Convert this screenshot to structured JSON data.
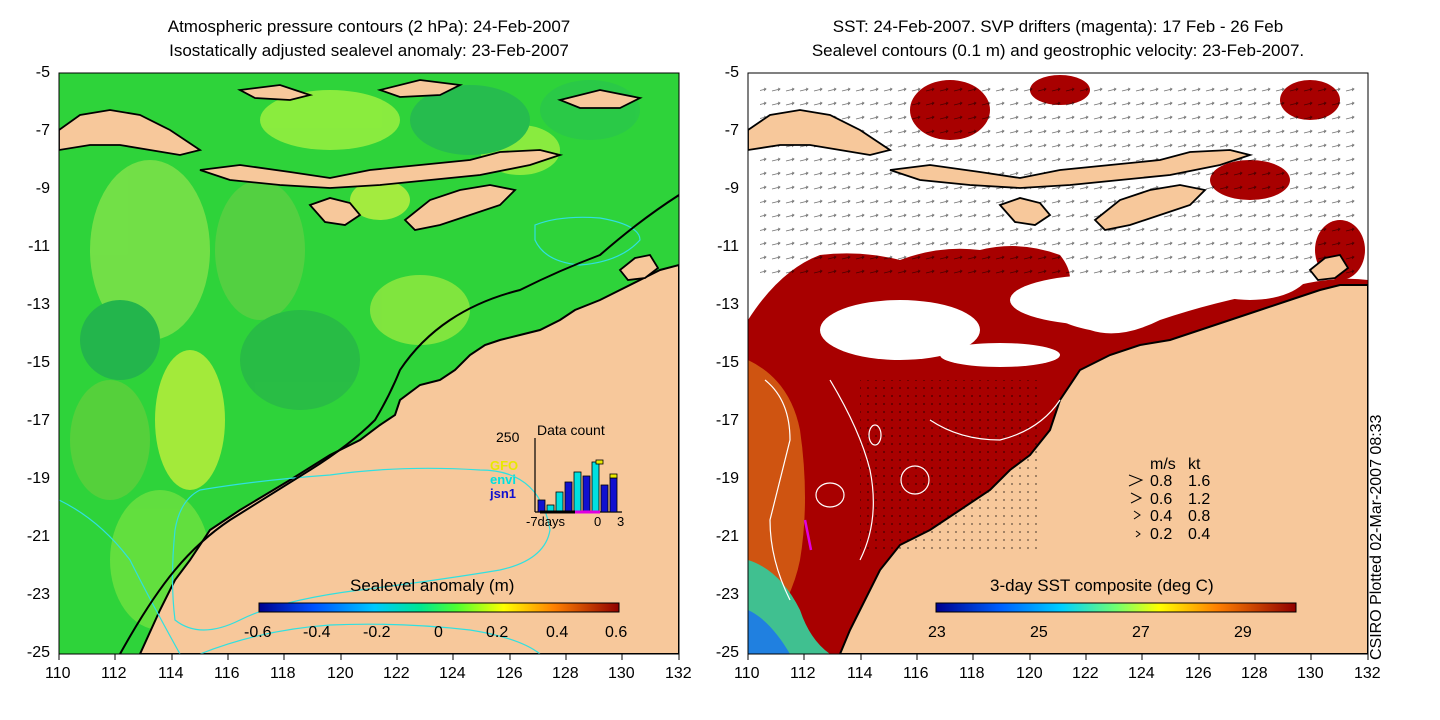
{
  "left_panel": {
    "title_line1": "Atmospheric pressure contours (2 hPa): 24-Feb-2007",
    "title_line2": "Isostatically adjusted sealevel anomaly: 23-Feb-2007",
    "colorbar_label": "Sealevel anomaly (m)",
    "colorbar_ticks": [
      "-0.6",
      "-0.4",
      "-0.2",
      "0",
      "0.2",
      "0.4",
      "0.6"
    ],
    "inset": {
      "title": "Data count",
      "ymax_label": "250",
      "legend": [
        {
          "name": "GFO",
          "color": "#e8e800"
        },
        {
          "name": "envi",
          "color": "#00e0e0"
        },
        {
          "name": "jsn1",
          "color": "#1010d0"
        }
      ],
      "x_left": "-7days",
      "x_mid": "0",
      "x_right": "3"
    }
  },
  "right_panel": {
    "title_line1": "SST: 24-Feb-2007. SVP drifters (magenta): 17 Feb - 26 Feb",
    "title_line2": "Sealevel contours (0.1 m) and geostrophic velocity: 23-Feb-2007.",
    "colorbar_label": "3-day SST composite (deg C)",
    "colorbar_ticks": [
      "23",
      "25",
      "27",
      "29"
    ],
    "velocity_legend": {
      "header_ms": "m/s",
      "header_kt": "kt",
      "rows": [
        {
          "ms": "0.8",
          "kt": "1.6"
        },
        {
          "ms": "0.6",
          "kt": "1.2"
        },
        {
          "ms": "0.4",
          "kt": "0.8"
        },
        {
          "ms": "0.2",
          "kt": "0.4"
        }
      ]
    }
  },
  "axes": {
    "y_ticks": [
      "-5",
      "-7",
      "-9",
      "-11",
      "-13",
      "-15",
      "-17",
      "-19",
      "-21",
      "-23",
      "-25"
    ],
    "x_ticks": [
      "110",
      "112",
      "114",
      "116",
      "118",
      "120",
      "122",
      "124",
      "126",
      "128",
      "130",
      "132"
    ]
  },
  "credit": "CSIRO Plotted 02-Mar-2007 08:33",
  "colors": {
    "land": "#f7c89b",
    "ocean_green": "#2ed33a",
    "sst_hot": "#a80000",
    "cloud": "#ffffff"
  }
}
